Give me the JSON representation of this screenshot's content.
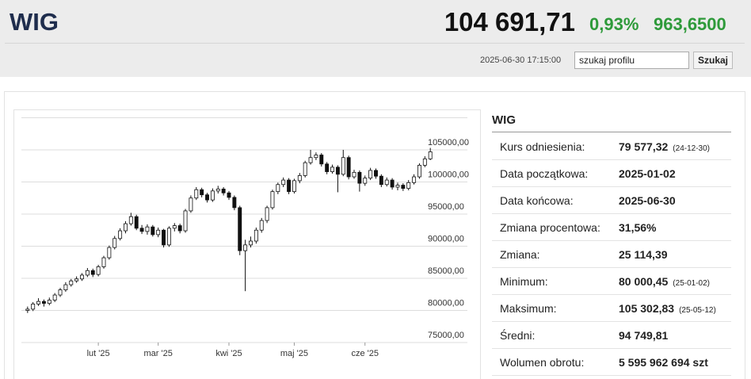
{
  "header": {
    "title": "WIG",
    "last": "104 691,71",
    "change_pct": "0,93%",
    "change": "963,6500",
    "datetime": "2025-06-30 17:15:00",
    "search": "szukaj profilu",
    "button": "Szukaj"
  },
  "chart_data": {
    "type": "candlestick",
    "xlim": [
      -0.7,
      74.7
    ],
    "xticks": [
      {
        "value": 13,
        "label": "lut '25"
      },
      {
        "value": 24,
        "label": "mar '25"
      },
      {
        "value": 37,
        "label": "kwi '25"
      },
      {
        "value": 49,
        "label": "maj '25"
      },
      {
        "value": 62,
        "label": "cze '25"
      }
    ],
    "ylim": [
      75000,
      110000
    ],
    "yticks": [
      {
        "value": 75000,
        "label": "75000,00"
      },
      {
        "value": 80000,
        "label": "80000,00"
      },
      {
        "value": 85000,
        "label": "85000,00"
      },
      {
        "value": 90000,
        "label": "90000,00"
      },
      {
        "value": 95000,
        "label": "95000,00"
      },
      {
        "value": 100000,
        "label": "100000,00"
      },
      {
        "value": 105000,
        "label": "105000,00"
      }
    ],
    "grid": true,
    "up_color": "#ffffff",
    "down_color": "#111111",
    "open": [
      80000,
      80200,
      81000,
      81400,
      81100,
      81600,
      82400,
      83200,
      84000,
      84600,
      84900,
      85500,
      86200,
      85600,
      86800,
      88200,
      89800,
      91200,
      92400,
      93500,
      94600,
      92800,
      92300,
      93000,
      91800,
      92500,
      90200,
      92800,
      93200,
      92400,
      95500,
      97500,
      98800,
      98000,
      97200,
      98600,
      98900,
      98300,
      97600,
      96000,
      89300,
      90200,
      90800,
      92500,
      94000,
      96000,
      98500,
      99600,
      100300,
      98500,
      100200,
      101000,
      103000,
      103800,
      104200,
      102800,
      101600,
      102300,
      101200,
      103800,
      100800,
      101500,
      99800,
      100600,
      101800,
      100900,
      99600,
      100300,
      99200,
      99500,
      99000,
      99900,
      100800,
      102600,
      103600
    ],
    "high": [
      80600,
      81300,
      81900,
      81700,
      82000,
      82700,
      83500,
      84400,
      84900,
      85300,
      85800,
      86600,
      86500,
      87100,
      88500,
      90100,
      91600,
      92800,
      93900,
      95200,
      94900,
      93300,
      93400,
      93300,
      92900,
      92700,
      93100,
      93600,
      93500,
      95800,
      97900,
      99200,
      99100,
      98300,
      99000,
      99400,
      99200,
      98600,
      97900,
      96300,
      91000,
      91500,
      92900,
      94400,
      96300,
      98800,
      99900,
      100700,
      100600,
      100500,
      101400,
      103300,
      105000,
      104600,
      104500,
      103100,
      102700,
      102600,
      105000,
      104100,
      101900,
      101800,
      101000,
      102200,
      102100,
      101200,
      100700,
      100600,
      99900,
      99800,
      100300,
      101200,
      102900,
      104000,
      105303
    ],
    "low": [
      79600,
      79900,
      80700,
      80600,
      80800,
      81300,
      82100,
      82900,
      83700,
      84300,
      84600,
      85200,
      85200,
      85300,
      86500,
      87900,
      89500,
      90900,
      92000,
      93200,
      92500,
      91900,
      91800,
      91500,
      91400,
      89800,
      89900,
      92300,
      92000,
      92100,
      95200,
      97200,
      97600,
      96800,
      96900,
      98200,
      97900,
      97200,
      95600,
      88600,
      83000,
      89800,
      90400,
      92100,
      93600,
      95700,
      98100,
      99200,
      98100,
      98200,
      99800,
      100700,
      102700,
      103400,
      102400,
      101200,
      101300,
      98400,
      100900,
      100400,
      100500,
      98500,
      99400,
      100300,
      100500,
      99200,
      99300,
      98800,
      98700,
      98600,
      98700,
      99600,
      100500,
      102300,
      103400
    ],
    "close": [
      80200,
      81000,
      81400,
      81100,
      81600,
      82400,
      83200,
      84000,
      84600,
      84900,
      85500,
      86200,
      85600,
      86800,
      88200,
      89800,
      91200,
      92400,
      93500,
      94600,
      92800,
      92300,
      93000,
      91800,
      92500,
      90200,
      92800,
      93200,
      92400,
      95500,
      97500,
      98800,
      98000,
      97200,
      98600,
      98900,
      98300,
      97600,
      96000,
      89300,
      90200,
      90800,
      92500,
      94000,
      96000,
      98500,
      99600,
      100300,
      98500,
      100200,
      101000,
      103000,
      103800,
      104200,
      102800,
      101600,
      102300,
      101200,
      103800,
      100800,
      101500,
      99800,
      100600,
      101800,
      100900,
      99600,
      100300,
      99200,
      99500,
      99000,
      99900,
      100800,
      102600,
      103600,
      104692
    ]
  },
  "table": {
    "title": "WIG",
    "rows": [
      {
        "label": "Kurs odniesienia:",
        "value": "79 577,32",
        "note": "(24-12-30)"
      },
      {
        "label": "Data początkowa:",
        "value": "2025-01-02"
      },
      {
        "label": "Data końcowa:",
        "value": "2025-06-30"
      },
      {
        "label": "Zmiana procentowa:",
        "value": "31,56%"
      },
      {
        "label": "Zmiana:",
        "value": "25 114,39"
      },
      {
        "label": "Minimum:",
        "value": "80 000,45",
        "note": "(25-01-02)"
      },
      {
        "label": "Maksimum:",
        "value": "105 302,83",
        "note": "(25-05-12)"
      },
      {
        "label": "Średni:",
        "value": "94 749,81"
      },
      {
        "label": "Wolumen obrotu:",
        "value": "5 595 962 694 szt"
      }
    ]
  }
}
